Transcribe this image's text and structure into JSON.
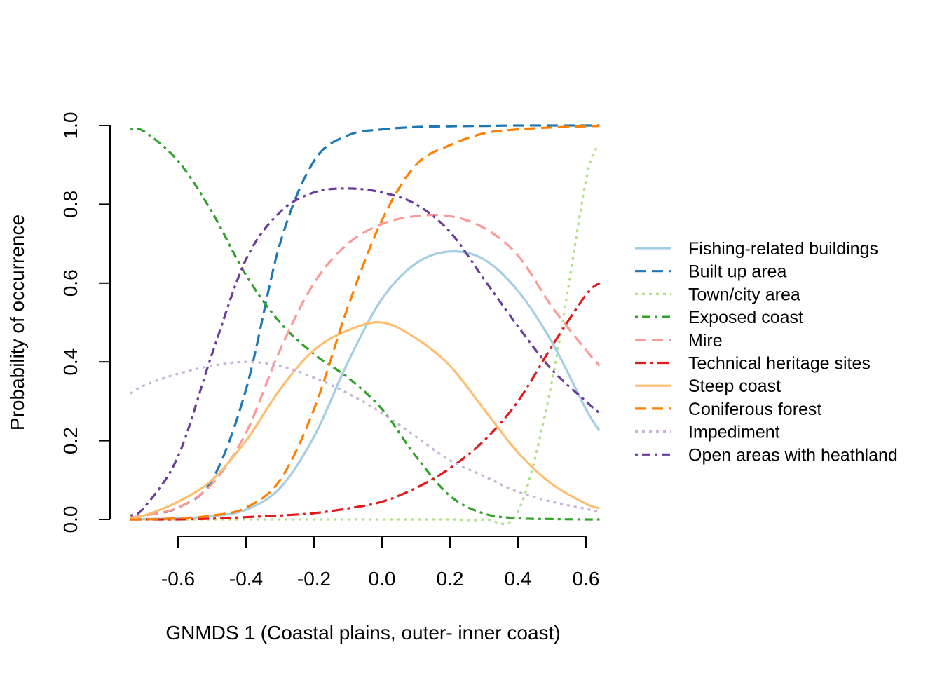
{
  "chart_data": {
    "type": "line",
    "xlabel": "GNMDS 1 (Coastal plains, outer- inner coast)",
    "ylabel": "Probability of occurrence",
    "xlim": [
      -0.75,
      0.64
    ],
    "ylim": [
      0,
      1
    ],
    "xticks": [
      -0.6,
      -0.4,
      -0.2,
      0.0,
      0.2,
      0.4,
      0.6
    ],
    "xtick_labels": [
      "-0.6",
      "-0.4",
      "-0.2",
      "0.0",
      "0.2",
      "0.4",
      "0.6"
    ],
    "yticks": [
      0,
      0.2,
      0.4,
      0.6,
      0.8,
      1.0
    ],
    "ytick_labels": [
      "0.0",
      "0.2",
      "0.4",
      "0.6",
      "0.8",
      "1.0"
    ],
    "legend_position": "right",
    "x": [
      -0.74,
      -0.7,
      -0.6,
      -0.5,
      -0.4,
      -0.3,
      -0.2,
      -0.1,
      0.0,
      0.1,
      0.2,
      0.3,
      0.4,
      0.5,
      0.6,
      0.64
    ],
    "series": [
      {
        "name": "Fishing-related buildings",
        "color": "#a6cee3",
        "dash": "solid",
        "values": [
          0.0,
          0.001,
          0.003,
          0.008,
          0.025,
          0.08,
          0.21,
          0.4,
          0.56,
          0.65,
          0.68,
          0.66,
          0.58,
          0.45,
          0.28,
          0.225
        ]
      },
      {
        "name": "Built up area",
        "color": "#1f78b4",
        "dash": "long-dash",
        "values": [
          0.005,
          0.01,
          0.03,
          0.1,
          0.33,
          0.7,
          0.91,
          0.975,
          0.99,
          0.996,
          0.998,
          0.999,
          1.0,
          1.0,
          1.0,
          1.0
        ]
      },
      {
        "name": "Town/city area",
        "color": "#b2df8a",
        "dash": "dotted",
        "values": [
          0.0,
          0.0,
          0.0,
          0.0,
          0.0,
          0.0,
          0.0,
          0.0,
          0.0,
          0.0,
          0.0,
          0.0,
          0.02,
          0.35,
          0.86,
          0.95
        ]
      },
      {
        "name": "Exposed coast",
        "color": "#33a02c",
        "dash": "dot-dash",
        "values": [
          0.99,
          0.985,
          0.91,
          0.78,
          0.62,
          0.5,
          0.42,
          0.36,
          0.28,
          0.16,
          0.06,
          0.015,
          0.003,
          0.001,
          0.0,
          0.0
        ]
      },
      {
        "name": "Mire",
        "color": "#fb9a99",
        "dash": "long-dash",
        "values": [
          0.005,
          0.01,
          0.03,
          0.09,
          0.22,
          0.43,
          0.6,
          0.7,
          0.75,
          0.77,
          0.77,
          0.74,
          0.67,
          0.54,
          0.43,
          0.39
        ]
      },
      {
        "name": "Technical heritage sites",
        "color": "#e31a1c",
        "dash": "long-dot-dash",
        "values": [
          0.0,
          0.0,
          0.0,
          0.002,
          0.006,
          0.01,
          0.016,
          0.028,
          0.045,
          0.08,
          0.13,
          0.2,
          0.3,
          0.44,
          0.57,
          0.6
        ]
      },
      {
        "name": "Steep coast",
        "color": "#fdbf6f",
        "dash": "solid",
        "values": [
          0.005,
          0.01,
          0.045,
          0.1,
          0.2,
          0.33,
          0.43,
          0.48,
          0.5,
          0.46,
          0.39,
          0.28,
          0.17,
          0.09,
          0.04,
          0.028
        ]
      },
      {
        "name": "Coniferous forest",
        "color": "#ff7f00",
        "dash": "long-dash",
        "values": [
          0.0,
          0.0,
          0.003,
          0.01,
          0.03,
          0.1,
          0.28,
          0.54,
          0.76,
          0.9,
          0.95,
          0.98,
          0.99,
          0.995,
          0.998,
          0.999
        ]
      },
      {
        "name": "Impediment",
        "color": "#cab2d6",
        "dash": "dotted",
        "values": [
          0.32,
          0.34,
          0.37,
          0.39,
          0.4,
          0.39,
          0.36,
          0.32,
          0.27,
          0.21,
          0.15,
          0.11,
          0.07,
          0.045,
          0.027,
          0.02
        ]
      },
      {
        "name": "Open areas with heathland",
        "color": "#6a3d9a",
        "dash": "dot-dash",
        "values": [
          0.01,
          0.03,
          0.16,
          0.42,
          0.66,
          0.78,
          0.83,
          0.84,
          0.83,
          0.8,
          0.73,
          0.61,
          0.49,
          0.38,
          0.3,
          0.27
        ]
      }
    ]
  }
}
